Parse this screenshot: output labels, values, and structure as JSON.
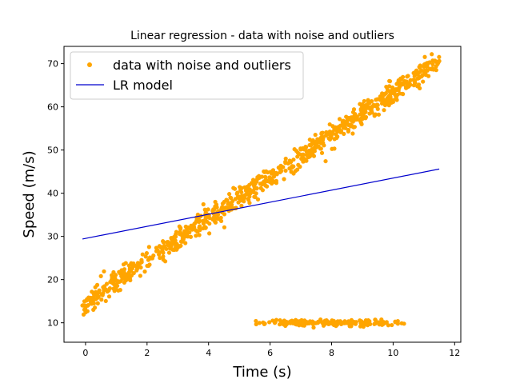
{
  "chart_data": {
    "type": "scatter",
    "title": "Linear regression - data with noise and outliers",
    "xlabel": "Time (s)",
    "ylabel": "Speed (m/s)",
    "xlim": [
      -0.7,
      12.2
    ],
    "ylim": [
      5.5,
      74
    ],
    "xticks": [
      0,
      2,
      4,
      6,
      8,
      10,
      12
    ],
    "yticks": [
      10,
      20,
      30,
      40,
      50,
      60,
      70
    ],
    "grid": false,
    "legend_position": "upper-left",
    "main_trend": {
      "slope": 4.9,
      "intercept": 14.4,
      "x_range": [
        -0.1,
        11.5
      ],
      "noise_sd": 1.3
    },
    "outlier_cluster": {
      "y_center": 10.0,
      "x_range": [
        5.5,
        10.4
      ],
      "noise_sd": 0.35
    },
    "series": [
      {
        "name": "data with noise and outliers",
        "kind": "scatter",
        "color": "#ffa500",
        "notable_points": [
          [
            -0.1,
            14.0
          ],
          [
            0.3,
            15.5
          ],
          [
            0.4,
            14.5
          ],
          [
            0.5,
            20.8
          ],
          [
            0.6,
            21.9
          ],
          [
            0.85,
            21.0
          ],
          [
            1.0,
            18.8
          ],
          [
            1.2,
            20.2
          ],
          [
            11.2,
            68.8
          ],
          [
            11.5,
            70.6
          ]
        ]
      },
      {
        "name": "LR model",
        "kind": "line",
        "color": "#0000cd",
        "x": [
          -0.1,
          11.5
        ],
        "y": [
          29.4,
          45.6
        ]
      }
    ]
  }
}
